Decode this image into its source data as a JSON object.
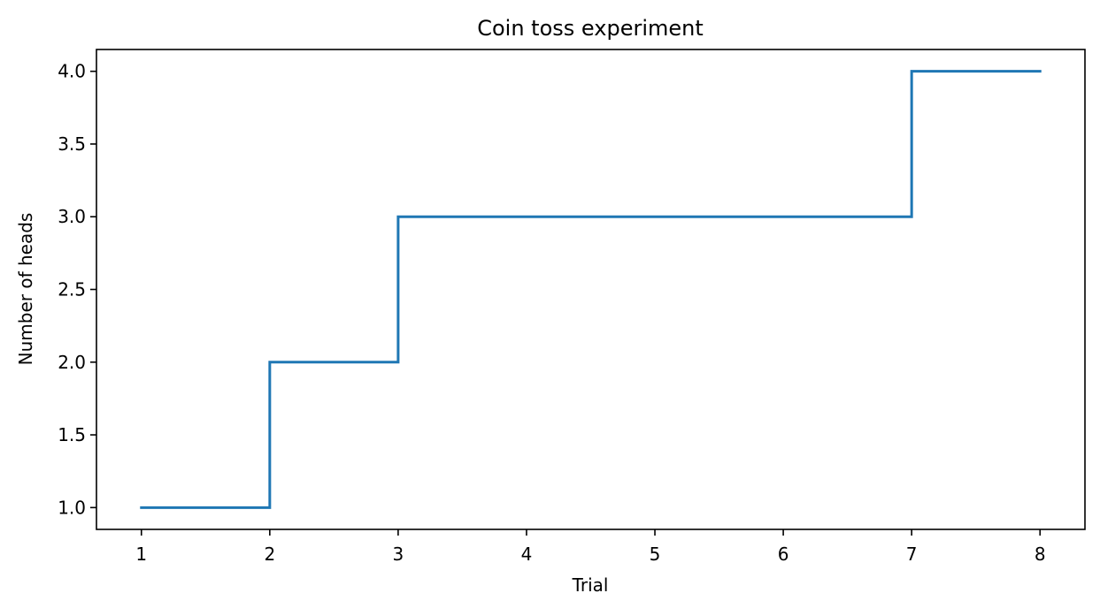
{
  "chart_data": {
    "type": "line",
    "step": "post",
    "title": "Coin toss experiment",
    "xlabel": "Trial",
    "ylabel": "Number of heads",
    "x": [
      1,
      2,
      3,
      4,
      5,
      6,
      7,
      8
    ],
    "series": [
      {
        "values": [
          1,
          2,
          3,
          3,
          3,
          3,
          4,
          4
        ],
        "color": "#1f77b4"
      }
    ],
    "xlim": [
      0.65,
      8.35
    ],
    "ylim": [
      0.85,
      4.15
    ],
    "xticks": [
      "1",
      "2",
      "3",
      "4",
      "5",
      "6",
      "7",
      "8"
    ],
    "yticks": [
      "1.0",
      "1.5",
      "2.0",
      "2.5",
      "3.0",
      "3.5",
      "4.0"
    ],
    "grid": false,
    "legend": "none"
  }
}
